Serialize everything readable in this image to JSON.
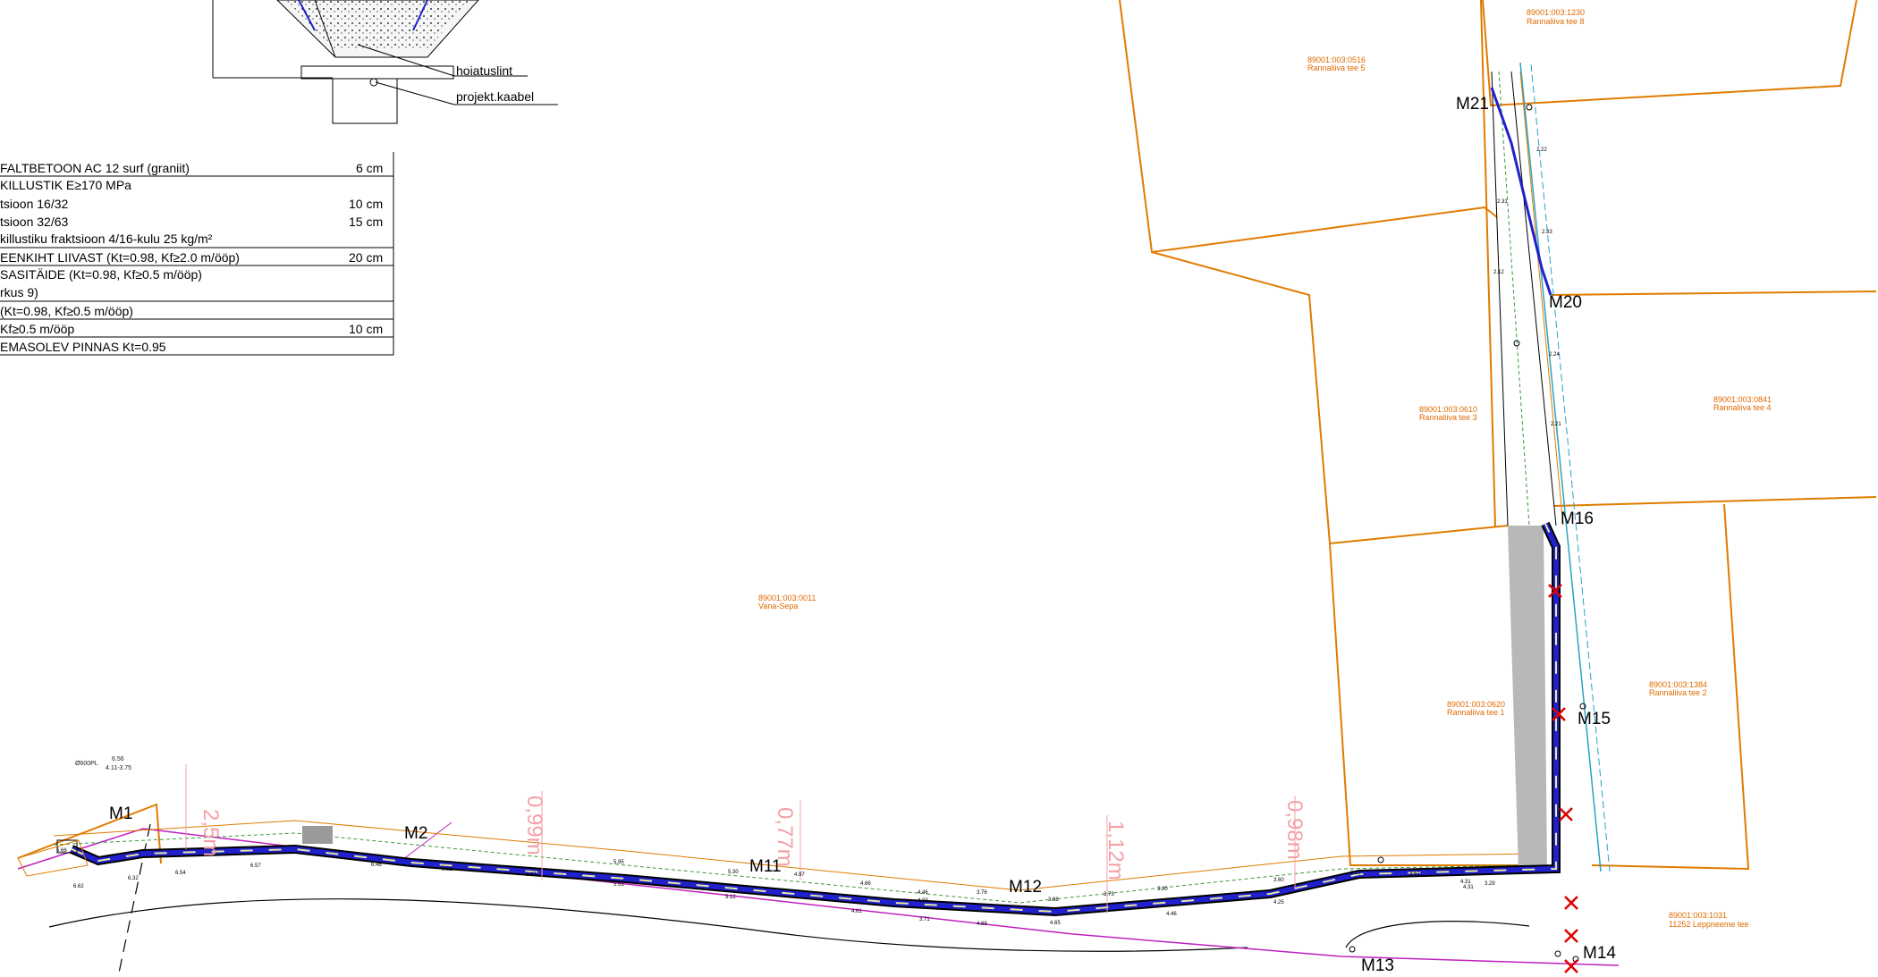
{
  "section_labels": {
    "warning_tape": "hoiatuslint",
    "cable": "projekt.kaabel"
  },
  "layers": [
    {
      "text": "FALTBETOON AC 12 surf (graniit)",
      "thickness": "6 cm"
    },
    {
      "text": "KILLUSTIK   E≥170 MPa",
      "thickness": ""
    },
    {
      "text": "tsioon 16/32",
      "thickness": "10 cm"
    },
    {
      "text": "tsioon 32/63",
      "thickness": "15 cm"
    },
    {
      "text": "killustiku fraktsioon 4/16-kulu 25 kg/m²",
      "thickness": ""
    },
    {
      "text": "EENKIHT LIIVAST (Kt=0.98, Kf≥2.0 m/ööp)",
      "thickness": "20 cm"
    },
    {
      "text": "SASITÄIDE (Kt=0.98, Kf≥0.5 m/ööp)",
      "thickness": ""
    },
    {
      "text": "rkus 9)",
      "thickness": ""
    },
    {
      "text": " (Kt=0.98, Kf≥0.5 m/ööp)",
      "thickness": ""
    },
    {
      "text": " Kf≥0.5 m/ööp",
      "thickness": "10 cm"
    },
    {
      "text": "EMASOLEV PINNAS Kt=0.95",
      "thickness": ""
    }
  ],
  "markers": {
    "M1": "M1",
    "M2": "M2",
    "M11": "M11",
    "M12": "M12",
    "M13": "M13",
    "M14": "M14",
    "M15": "M15",
    "M16": "M16",
    "M20": "M20",
    "M21": "M21"
  },
  "parcels": [
    {
      "id": "89001:003:1230",
      "name": "Rannaliiva tee 8"
    },
    {
      "id": "89001:003:0516",
      "name": "Rannaliiva tee 5"
    },
    {
      "id": "89001:003:0610",
      "name": "Rannaliiva tee 3"
    },
    {
      "id": "89001:003:0841",
      "name": "Rannaliiva tee 4"
    },
    {
      "id": "89001:003:0011",
      "name": "Vana-Sepa"
    },
    {
      "id": "89001:003:0620",
      "name": "Rannaliiva tee 1"
    },
    {
      "id": "89001:003:1384",
      "name": "Rannaliiva tee 2"
    },
    {
      "id": "89001:003:1031",
      "name": "11252 Leppneeme tee"
    }
  ],
  "dimensions": {
    "d1": "2,5m",
    "d2": "0,99m",
    "d3": "0,77m",
    "d4": "1,12m",
    "d5": "0,98m"
  },
  "levels": {
    "a": "6.56",
    "b": "4.11-3.75",
    "c": "Ø600PL",
    "l1": "5.66",
    "l2": "6.32",
    "l3": "6.62",
    "l4": "6.54",
    "l5": "6.57",
    "l6": "6.48",
    "l7": "6.52",
    "l8": "6.63",
    "l9": "5.95",
    "l10": "5.51",
    "l11": "5.30",
    "l12": "5.12",
    "l13": "4.97",
    "l14": "4.66",
    "l15": "4.61",
    "l16": "4.46",
    "l17": "4.33",
    "l18": "3.71",
    "l19": "3.76",
    "l20": "4.88",
    "l21": "3.88",
    "l22": "4.65",
    "l23": "3.73",
    "l24": "3.80",
    "l25": "4.46",
    "l26": "3.60",
    "l27": "4.25",
    "l28": "3.51",
    "l29": "3.51",
    "l30": "4.31",
    "l31": "4.31",
    "l32": "3.29",
    "l33": "2.22",
    "l34": "2.33",
    "l35": "2.24",
    "l36": "2.21",
    "l37": "2.31",
    "l38": "2.12"
  },
  "colors": {
    "parcel": "#e07b00",
    "trench": "#2020cc",
    "road_fill": "#b8b8b8",
    "cable_cyan": "#29a3c4",
    "boundary_magenta": "#c020c0",
    "green": "#3a9a3a",
    "dimension": "#f4a0a6",
    "remove_mark": "#e00000"
  }
}
